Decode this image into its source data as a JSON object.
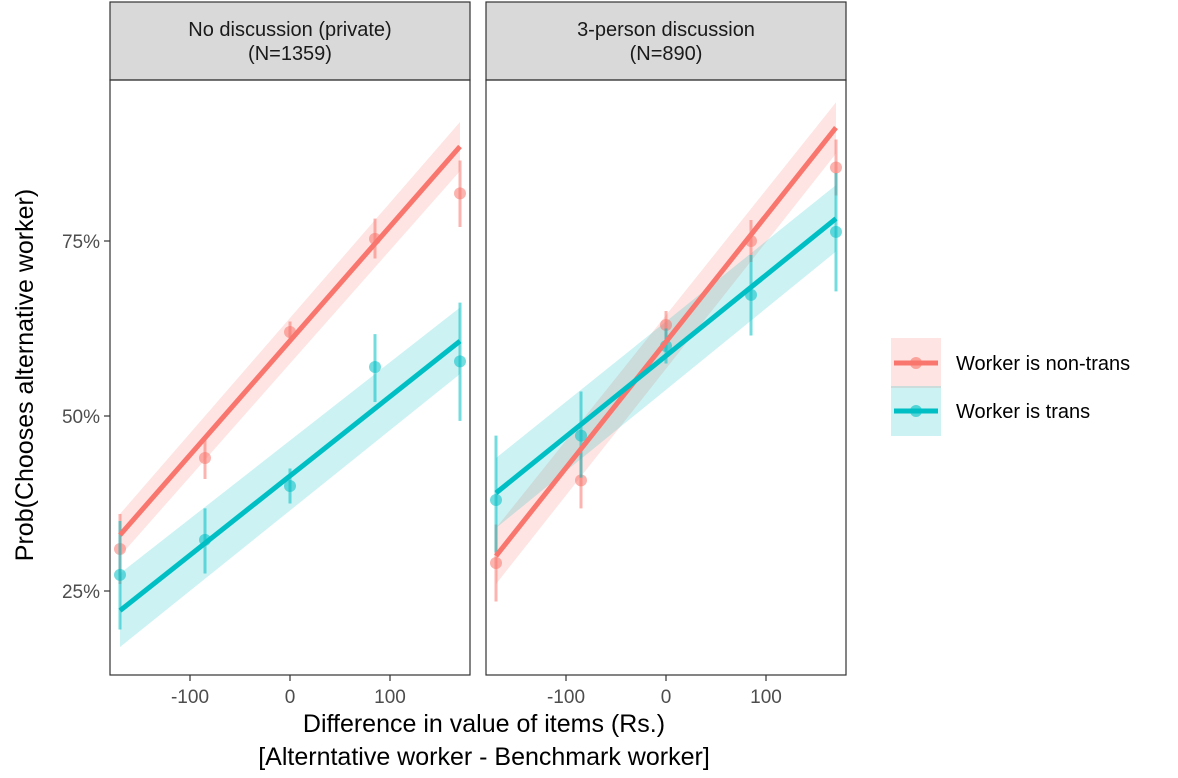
{
  "chart_data": {
    "type": "scatter",
    "xlabel_lines": [
      "Difference in value of items (Rs.)",
      "[Alterntative worker - Benchmark worker]"
    ],
    "ylabel": "Prob(Chooses alternative worker)",
    "x_ticks": [
      -100,
      0,
      100
    ],
    "x_tick_labels": [
      "-100",
      "0",
      "100"
    ],
    "xlim": [
      -180,
      180
    ],
    "y_ticks": [
      0.25,
      0.5,
      0.75
    ],
    "y_tick_labels": [
      "25%",
      "50%",
      "75%"
    ],
    "ylim": [
      0.13,
      0.98
    ],
    "legend_position": "right",
    "grid": false,
    "series_styles": [
      {
        "name": "Worker is non-trans",
        "color": "#F8766D"
      },
      {
        "name": "Worker is trans",
        "color": "#00BFC4"
      }
    ],
    "panels": [
      {
        "strip_lines": [
          "No discussion (private)",
          "(N=1359)"
        ],
        "series": [
          {
            "name": "Worker is non-trans",
            "points": [
              {
                "x": -170,
                "y": 0.31,
                "lo": 0.26,
                "hi": 0.36
              },
              {
                "x": -85,
                "y": 0.44,
                "lo": 0.41,
                "hi": 0.47
              },
              {
                "x": 0,
                "y": 0.62,
                "lo": 0.605,
                "hi": 0.635
              },
              {
                "x": 85,
                "y": 0.753,
                "lo": 0.725,
                "hi": 0.782
              },
              {
                "x": 170,
                "y": 0.818,
                "lo": 0.77,
                "hi": 0.865
              }
            ],
            "fit": {
              "x": [
                -170,
                170
              ],
              "y": [
                0.33,
                0.885
              ]
            },
            "band": {
              "lower": [
                0.3,
                0.85
              ],
              "upper": [
                0.36,
                0.92
              ]
            }
          },
          {
            "name": "Worker is trans",
            "points": [
              {
                "x": -170,
                "y": 0.273,
                "lo": 0.195,
                "hi": 0.35
              },
              {
                "x": -85,
                "y": 0.323,
                "lo": 0.275,
                "hi": 0.368
              },
              {
                "x": 0,
                "y": 0.4,
                "lo": 0.375,
                "hi": 0.425
              },
              {
                "x": 85,
                "y": 0.57,
                "lo": 0.52,
                "hi": 0.617
              },
              {
                "x": 170,
                "y": 0.578,
                "lo": 0.493,
                "hi": 0.662
              }
            ],
            "fit": {
              "x": [
                -170,
                170
              ],
              "y": [
                0.222,
                0.607
              ]
            },
            "band": {
              "lower": [
                0.17,
                0.56
              ],
              "upper": [
                0.275,
                0.655
              ]
            }
          }
        ]
      },
      {
        "strip_lines": [
          "3-person discussion",
          "(N=890)"
        ],
        "series": [
          {
            "name": "Worker is non-trans",
            "points": [
              {
                "x": -170,
                "y": 0.29,
                "lo": 0.235,
                "hi": 0.345
              },
              {
                "x": -85,
                "y": 0.408,
                "lo": 0.368,
                "hi": 0.448
              },
              {
                "x": 0,
                "y": 0.63,
                "lo": 0.61,
                "hi": 0.65
              },
              {
                "x": 85,
                "y": 0.75,
                "lo": 0.72,
                "hi": 0.78
              },
              {
                "x": 170,
                "y": 0.855,
                "lo": 0.815,
                "hi": 0.895
              }
            ],
            "fit": {
              "x": [
                -170,
                170
              ],
              "y": [
                0.3,
                0.912
              ]
            },
            "band": {
              "lower": [
                0.26,
                0.875
              ],
              "upper": [
                0.34,
                0.948
              ]
            }
          },
          {
            "name": "Worker is trans",
            "points": [
              {
                "x": -170,
                "y": 0.38,
                "lo": 0.305,
                "hi": 0.472
              },
              {
                "x": -85,
                "y": 0.472,
                "lo": 0.412,
                "hi": 0.535
              },
              {
                "x": 0,
                "y": 0.6,
                "lo": 0.575,
                "hi": 0.625
              },
              {
                "x": 85,
                "y": 0.673,
                "lo": 0.615,
                "hi": 0.73
              },
              {
                "x": 170,
                "y": 0.763,
                "lo": 0.678,
                "hi": 0.847
              }
            ],
            "fit": {
              "x": [
                -170,
                170
              ],
              "y": [
                0.39,
                0.782
              ]
            },
            "band": {
              "lower": [
                0.34,
                0.735
              ],
              "upper": [
                0.44,
                0.83
              ]
            }
          }
        ]
      }
    ]
  }
}
